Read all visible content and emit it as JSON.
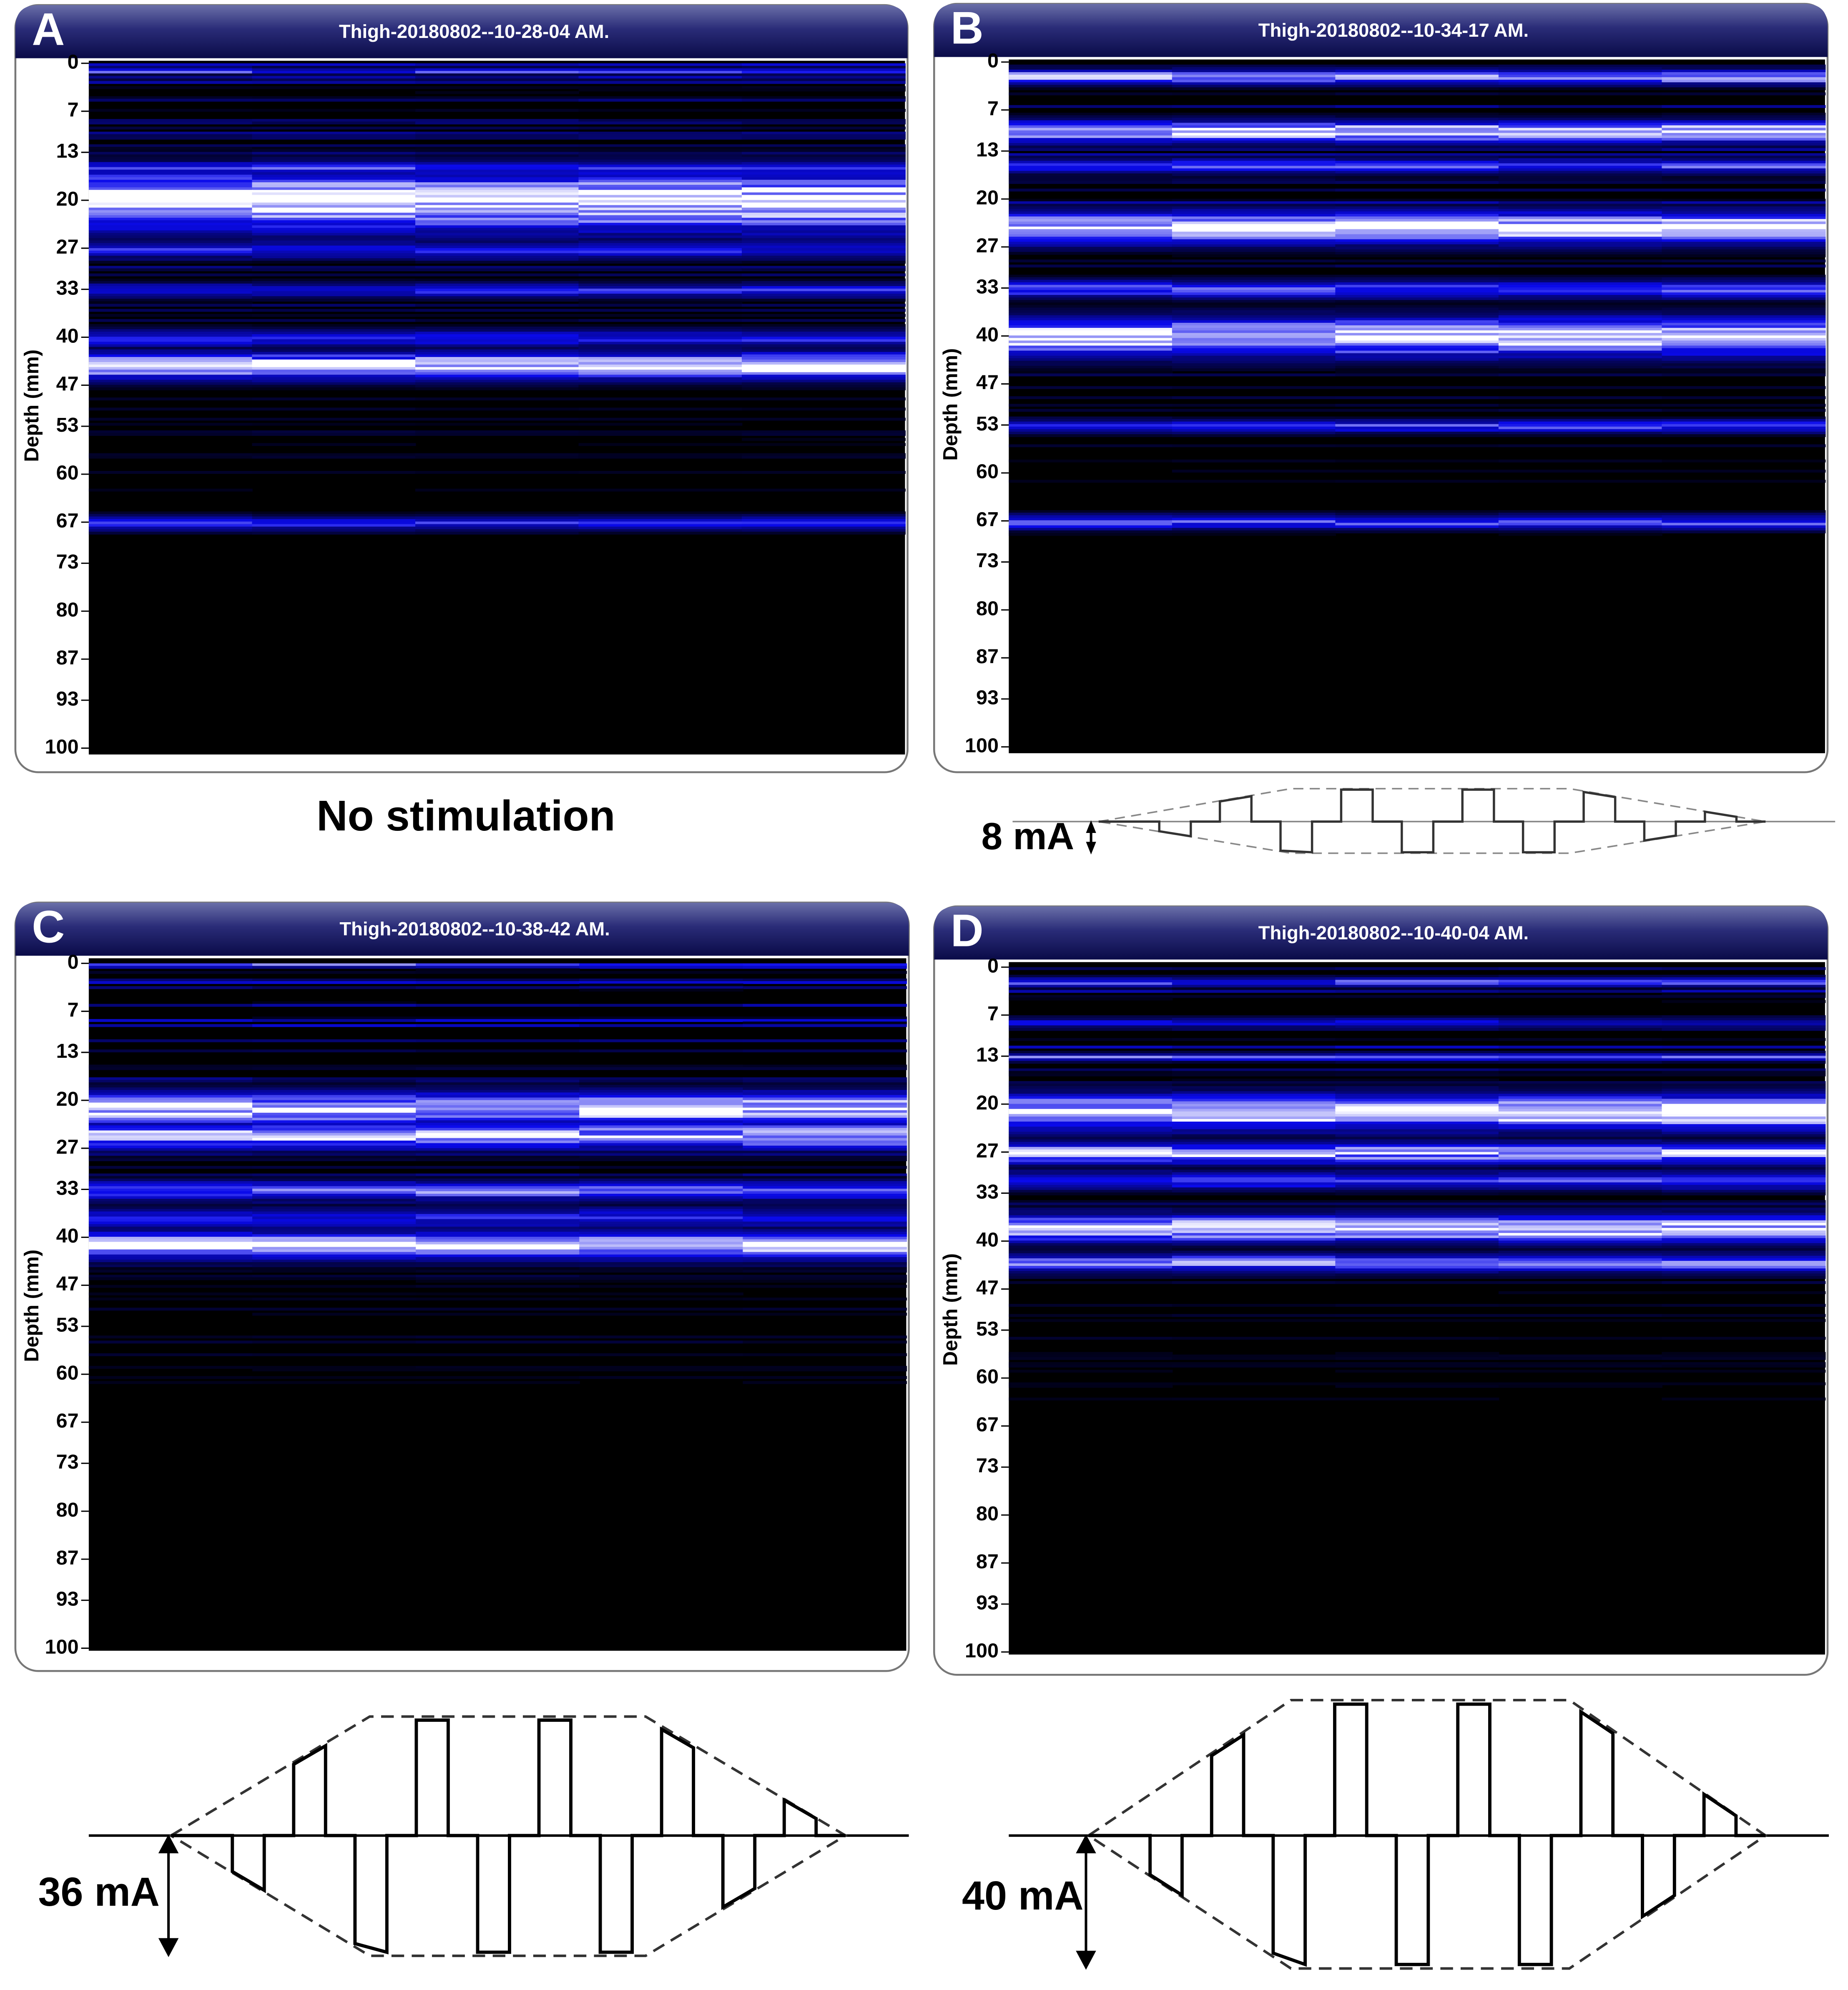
{
  "panels": [
    {
      "letter": "A",
      "title": "Thigh-20180802--10-28-04 AM.",
      "caption": "No stimulation"
    },
    {
      "letter": "B",
      "title": "Thigh-20180802--10-34-17 AM.",
      "stimulus": "8 mA"
    },
    {
      "letter": "C",
      "title": "Thigh-20180802--10-38-42 AM.",
      "stimulus": "36 mA"
    },
    {
      "letter": "D",
      "title": "Thigh-20180802--10-40-04 AM.",
      "stimulus": "40 mA"
    }
  ],
  "depth_axis": {
    "label": "Depth (mm)",
    "ticks": [
      0,
      7,
      13,
      20,
      27,
      33,
      40,
      47,
      53,
      60,
      67,
      73,
      80,
      87,
      93,
      100
    ]
  }
}
